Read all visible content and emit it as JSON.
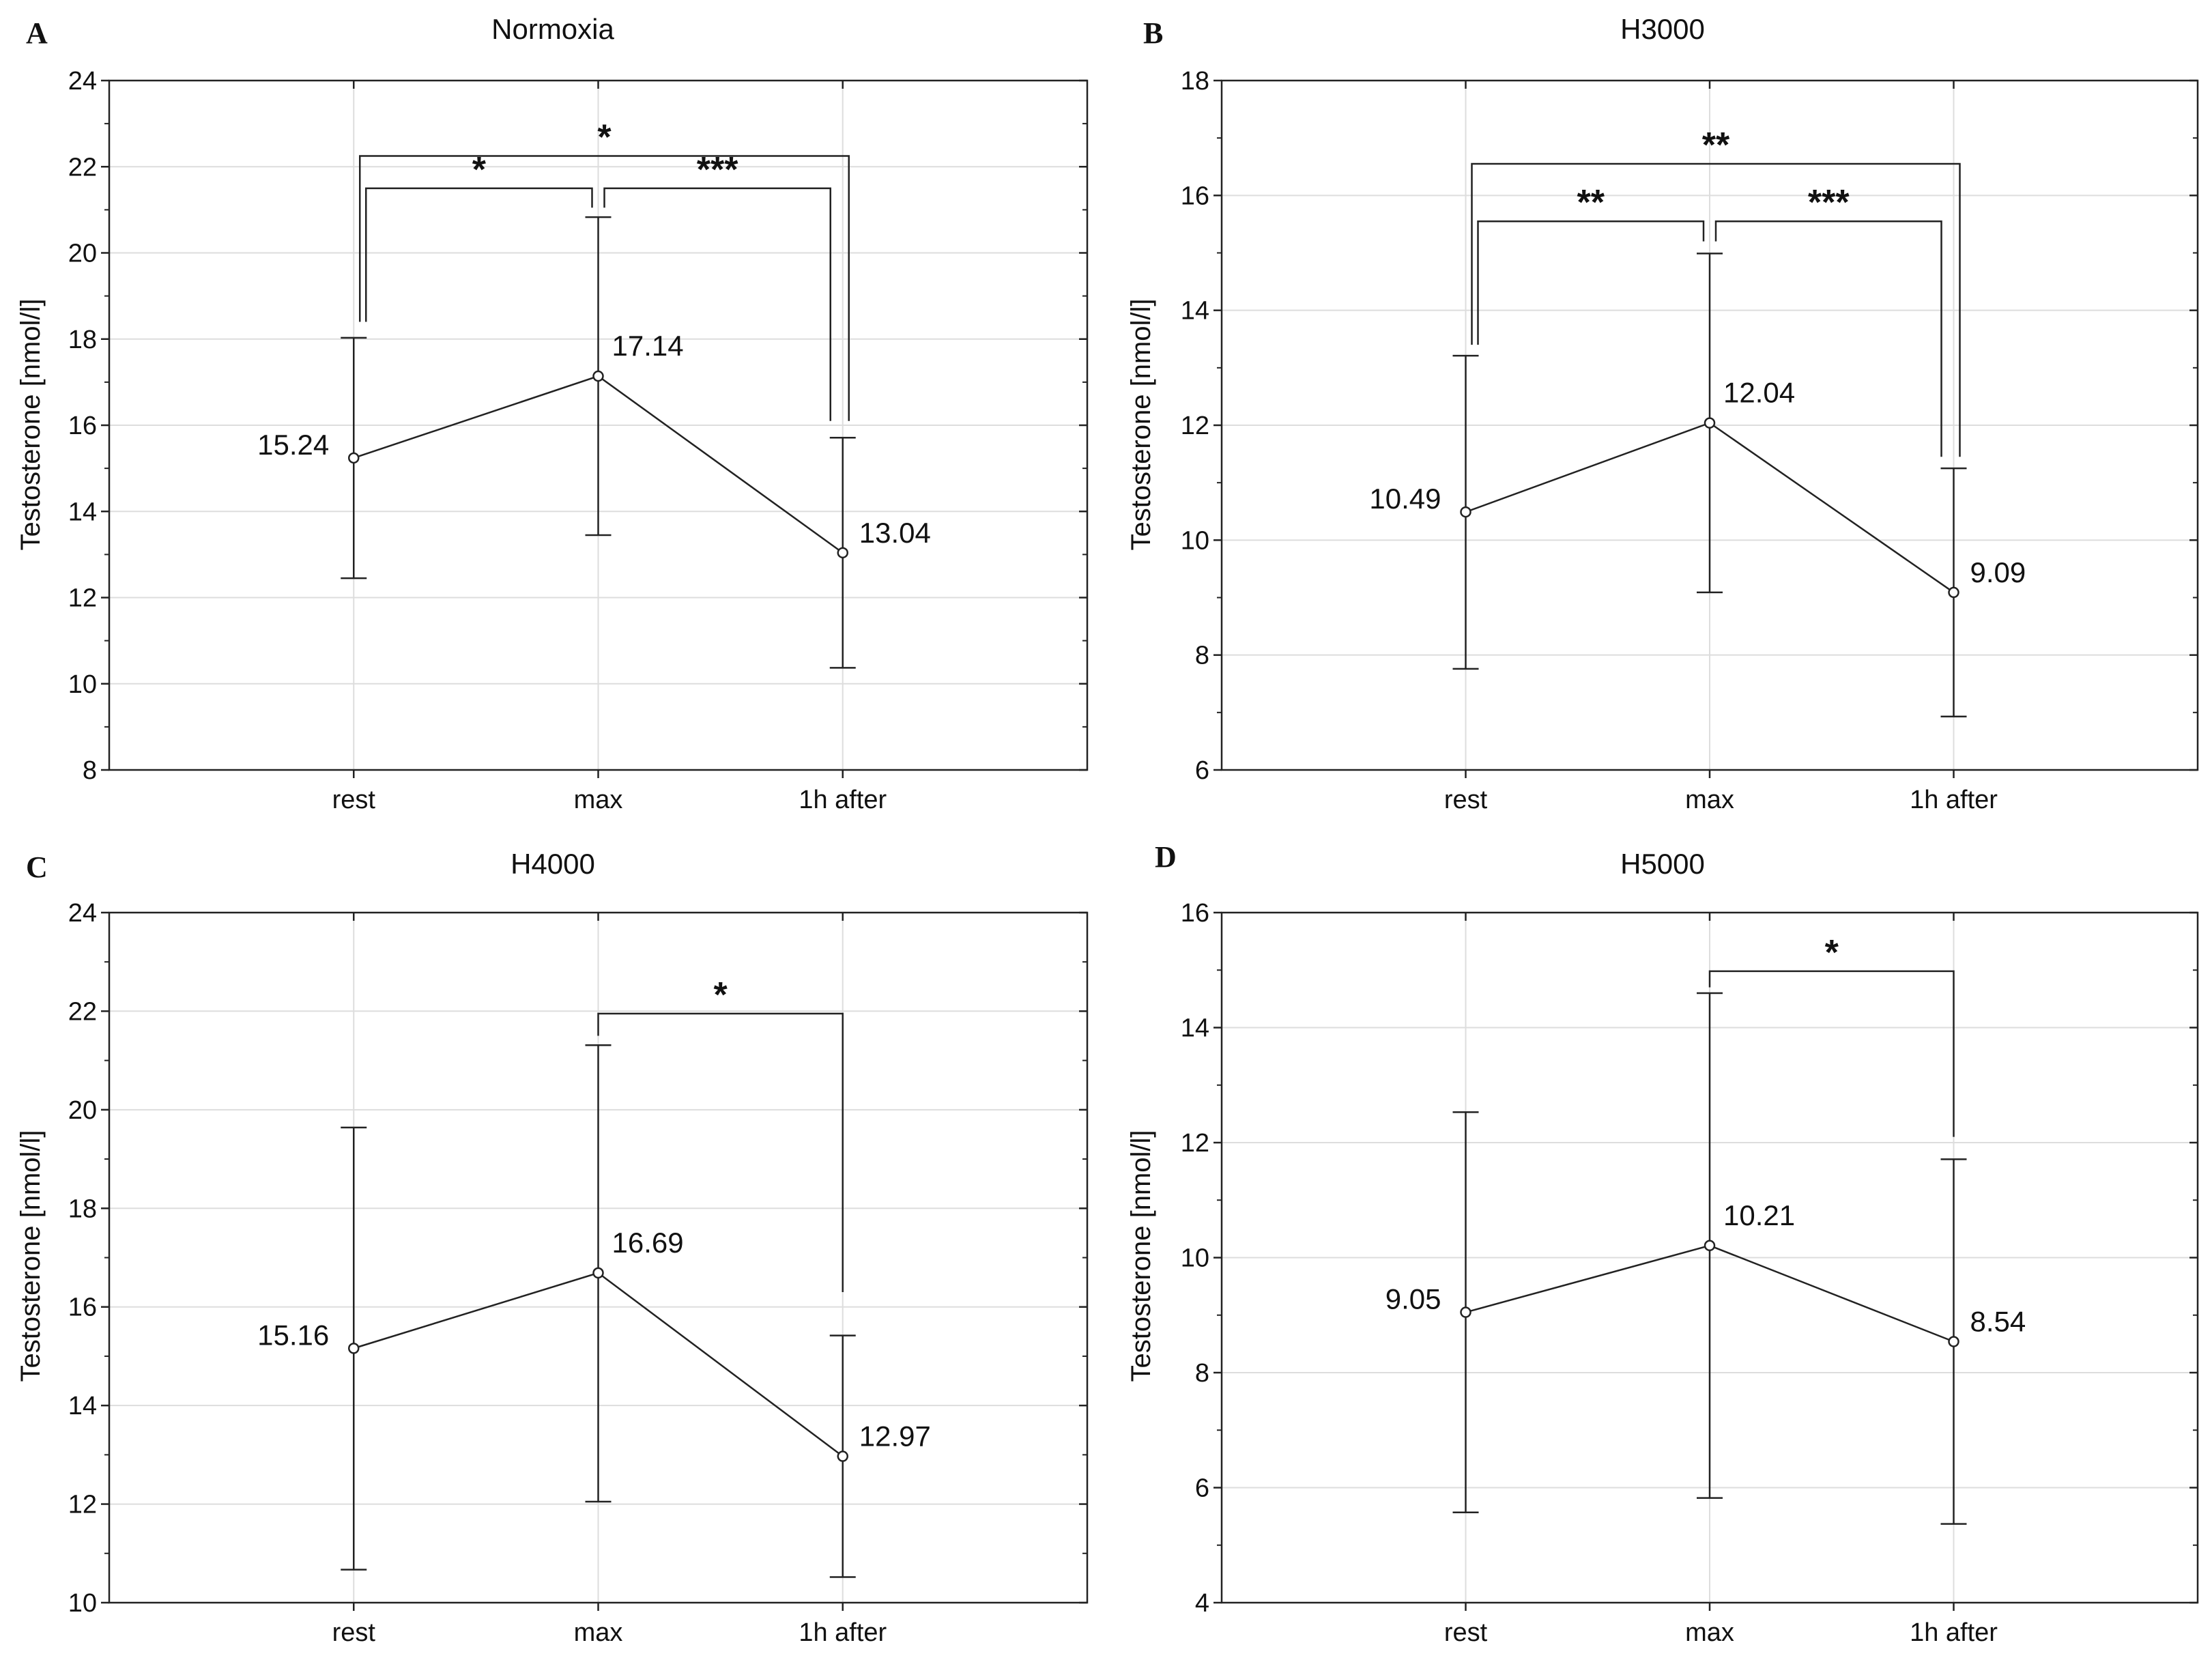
{
  "chart_data": [
    {
      "type": "line",
      "panel_label": "A",
      "title": "Normoxia",
      "ylabel": "Testosterone [nmol/l]",
      "xlabel": "",
      "categories": [
        "rest",
        "max",
        "1h after"
      ],
      "values": [
        15.24,
        17.14,
        13.04
      ],
      "value_labels": [
        "15.24",
        "17.14",
        "13.04"
      ],
      "error_low": [
        12.45,
        13.45,
        10.37
      ],
      "error_high": [
        18.03,
        20.83,
        15.71
      ],
      "ylim": [
        8,
        24
      ],
      "yticks": [
        8,
        10,
        12,
        14,
        16,
        18,
        20,
        22,
        24
      ],
      "ytick_labels": [
        "8",
        "10",
        "12",
        "14",
        "16",
        "18",
        "20",
        "22",
        "24"
      ],
      "grid": true,
      "significance": [
        {
          "from": 0,
          "to": 1,
          "label": "*",
          "level": 21.5,
          "drop_from": 18.4,
          "drop_to": 21.05
        },
        {
          "from": 1,
          "to": 2,
          "label": "***",
          "level": 21.5,
          "drop_from": 21.05,
          "drop_to": 16.1
        },
        {
          "from": 0,
          "to": 2,
          "label": "*",
          "level": 22.25,
          "drop_from": 18.4,
          "drop_to": 16.1
        }
      ]
    },
    {
      "type": "line",
      "panel_label": "B",
      "title": "H3000",
      "ylabel": "Testosterone [nmol/l]",
      "xlabel": "",
      "categories": [
        "rest",
        "max",
        "1h after"
      ],
      "values": [
        10.49,
        12.04,
        9.09
      ],
      "value_labels": [
        "10.49",
        "12.04",
        "9.09"
      ],
      "error_low": [
        7.76,
        9.09,
        6.93
      ],
      "error_high": [
        13.21,
        14.99,
        11.25
      ],
      "ylim": [
        6,
        18
      ],
      "yticks": [
        6,
        8,
        10,
        12,
        14,
        16,
        18
      ],
      "ytick_labels": [
        "6",
        "8",
        "10",
        "12",
        "14",
        "16",
        "18"
      ],
      "grid": true,
      "significance": [
        {
          "from": 0,
          "to": 1,
          "label": "**",
          "level": 15.55,
          "drop_from": 13.4,
          "drop_to": 15.2
        },
        {
          "from": 1,
          "to": 2,
          "label": "***",
          "level": 15.55,
          "drop_from": 15.2,
          "drop_to": 11.45
        },
        {
          "from": 0,
          "to": 2,
          "label": "**",
          "level": 16.55,
          "drop_from": 13.4,
          "drop_to": 11.45
        }
      ]
    },
    {
      "type": "line",
      "panel_label": "C",
      "title": "H4000",
      "ylabel": "Testosterone [nmol/l]",
      "xlabel": "",
      "categories": [
        "rest",
        "max",
        "1h after"
      ],
      "values": [
        15.16,
        16.69,
        12.97
      ],
      "value_labels": [
        "15.16",
        "16.69",
        "12.97"
      ],
      "error_low": [
        10.67,
        12.05,
        10.52
      ],
      "error_high": [
        19.64,
        21.31,
        15.42
      ],
      "ylim": [
        10,
        24
      ],
      "yticks": [
        10,
        12,
        14,
        16,
        18,
        20,
        22,
        24
      ],
      "ytick_labels": [
        "10",
        "12",
        "14",
        "16",
        "18",
        "20",
        "22",
        "24"
      ],
      "grid": true,
      "significance": [
        {
          "from": 1,
          "to": 2,
          "label": "*",
          "level": 21.95,
          "drop_from": 21.5,
          "drop_to": 16.3
        }
      ]
    },
    {
      "type": "line",
      "panel_label": "D",
      "title": "H5000",
      "ylabel": "Testosterone [nmol/l]",
      "xlabel": "",
      "categories": [
        "rest",
        "max",
        "1h after"
      ],
      "values": [
        9.05,
        10.21,
        8.54
      ],
      "value_labels": [
        "9.05",
        "10.21",
        "8.54"
      ],
      "error_low": [
        5.57,
        5.82,
        5.37
      ],
      "error_high": [
        12.53,
        14.6,
        11.71
      ],
      "ylim": [
        4,
        16
      ],
      "yticks": [
        4,
        6,
        8,
        10,
        12,
        14,
        16
      ],
      "ytick_labels": [
        "4",
        "6",
        "8",
        "10",
        "12",
        "14",
        "16"
      ],
      "grid": true,
      "significance": [
        {
          "from": 1,
          "to": 2,
          "label": "*",
          "level": 14.98,
          "drop_from": 14.7,
          "drop_to": 12.1
        }
      ]
    }
  ]
}
